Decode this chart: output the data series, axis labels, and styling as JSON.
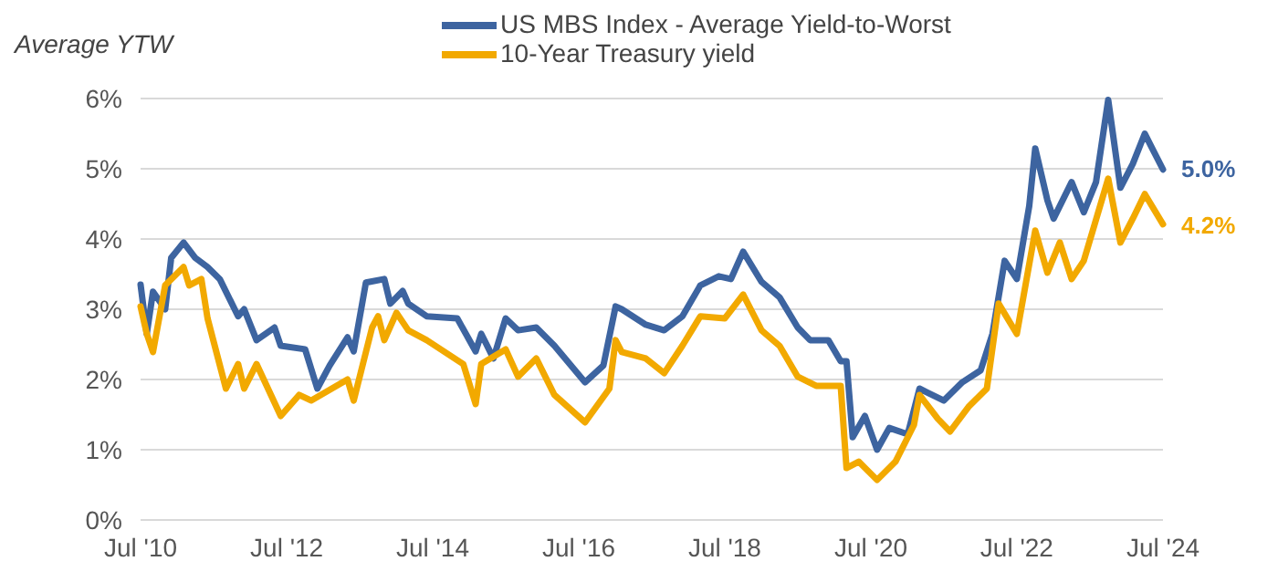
{
  "chart_data": {
    "type": "line",
    "ylabel": "Average YTW",
    "legend": "top",
    "grid": "y",
    "line_style": "solid",
    "marker": "none",
    "xlim": [
      "2010-07",
      "2024-07"
    ],
    "xticks": [
      {
        "value": "2010-07",
        "label": "Jul '10"
      },
      {
        "value": "2012-07",
        "label": "Jul '12"
      },
      {
        "value": "2014-07",
        "label": "Jul '14"
      },
      {
        "value": "2016-07",
        "label": "Jul '16"
      },
      {
        "value": "2018-07",
        "label": "Jul '18"
      },
      {
        "value": "2020-07",
        "label": "Jul '20"
      },
      {
        "value": "2022-07",
        "label": "Jul '22"
      },
      {
        "value": "2024-07",
        "label": "Jul '24"
      }
    ],
    "ylim": [
      0,
      6
    ],
    "yticks": [
      {
        "value": 0,
        "label": "0%"
      },
      {
        "value": 1,
        "label": "1%"
      },
      {
        "value": 2,
        "label": "2%"
      },
      {
        "value": 3,
        "label": "3%"
      },
      {
        "value": 4,
        "label": "4%"
      },
      {
        "value": 5,
        "label": "5%"
      },
      {
        "value": 6,
        "label": "6%"
      }
    ],
    "series": [
      {
        "name": "US MBS Index - Average Yield-to-Worst",
        "color": "#3d64a0",
        "x": [
          "2010-07",
          "2010-08",
          "2010-09",
          "2010-11",
          "2010-12",
          "2011-02",
          "2011-04",
          "2011-06",
          "2011-08",
          "2011-11",
          "2011-12",
          "2012-02",
          "2012-05",
          "2012-06",
          "2012-10",
          "2012-12",
          "2013-02",
          "2013-05",
          "2013-06",
          "2013-08",
          "2013-11",
          "2013-12",
          "2014-02",
          "2014-03",
          "2014-06",
          "2014-11",
          "2015-02",
          "2015-03",
          "2015-05",
          "2015-07",
          "2015-09",
          "2015-12",
          "2016-03",
          "2016-08",
          "2016-11",
          "2017-01",
          "2017-02",
          "2017-06",
          "2017-09",
          "2017-12",
          "2018-03",
          "2018-06",
          "2018-08",
          "2018-10",
          "2019-01",
          "2019-04",
          "2019-07",
          "2019-09",
          "2019-12",
          "2020-02",
          "2020-03",
          "2020-04",
          "2020-06",
          "2020-08",
          "2020-10",
          "2021-01",
          "2021-03",
          "2021-07",
          "2021-10",
          "2022-01",
          "2022-03",
          "2022-05",
          "2022-07",
          "2022-09",
          "2022-10",
          "2022-12",
          "2023-01",
          "2023-04",
          "2023-06",
          "2023-08",
          "2023-10",
          "2023-12",
          "2024-02",
          "2024-04",
          "2024-05",
          "2024-07"
        ],
        "values": [
          3.35,
          2.65,
          3.25,
          3.0,
          3.73,
          3.95,
          3.73,
          3.6,
          3.43,
          2.9,
          3.0,
          2.56,
          2.74,
          2.48,
          2.43,
          1.87,
          2.2,
          2.6,
          2.4,
          3.38,
          3.43,
          3.08,
          3.26,
          3.08,
          2.9,
          2.87,
          2.4,
          2.65,
          2.3,
          2.87,
          2.7,
          2.74,
          2.48,
          1.96,
          2.2,
          3.04,
          3.0,
          2.78,
          2.7,
          2.9,
          3.34,
          3.47,
          3.43,
          3.82,
          3.39,
          3.17,
          2.74,
          2.56,
          2.56,
          2.26,
          2.26,
          1.18,
          1.48,
          1.0,
          1.31,
          1.22,
          1.87,
          1.7,
          1.96,
          2.13,
          2.65,
          3.69,
          3.43,
          4.47,
          5.29,
          4.55,
          4.29,
          4.81,
          4.38,
          4.81,
          5.98,
          4.73,
          5.07,
          5.5,
          5.33,
          4.99
        ]
      },
      {
        "name": "10-Year Treasury yield",
        "color": "#f2a900",
        "x": [
          "2010-07",
          "2010-08",
          "2010-09",
          "2010-11",
          "2011-02",
          "2011-03",
          "2011-05",
          "2011-06",
          "2011-09",
          "2011-11",
          "2011-12",
          "2012-02",
          "2012-06",
          "2012-09",
          "2012-11",
          "2013-05",
          "2013-06",
          "2013-09",
          "2013-10",
          "2013-11",
          "2014-01",
          "2014-03",
          "2014-06",
          "2014-12",
          "2015-02",
          "2015-03",
          "2015-07",
          "2015-09",
          "2015-12",
          "2016-03",
          "2016-08",
          "2016-12",
          "2017-01",
          "2017-02",
          "2017-06",
          "2017-09",
          "2017-12",
          "2018-03",
          "2018-07",
          "2018-10",
          "2019-01",
          "2019-04",
          "2019-07",
          "2019-10",
          "2020-02",
          "2020-03",
          "2020-05",
          "2020-08",
          "2020-11",
          "2021-02",
          "2021-03",
          "2021-06",
          "2021-08",
          "2021-11",
          "2022-02",
          "2022-04",
          "2022-07",
          "2022-10",
          "2022-12",
          "2023-02",
          "2023-04",
          "2023-06",
          "2023-10",
          "2023-12",
          "2024-02",
          "2024-04",
          "2024-07"
        ],
        "values": [
          3.04,
          2.65,
          2.39,
          3.34,
          3.6,
          3.34,
          3.43,
          2.87,
          1.87,
          2.22,
          1.87,
          2.22,
          1.48,
          1.78,
          1.7,
          2.0,
          1.7,
          2.74,
          2.9,
          2.56,
          2.95,
          2.7,
          2.56,
          2.22,
          1.65,
          2.22,
          2.43,
          2.04,
          2.3,
          1.78,
          1.39,
          1.87,
          2.56,
          2.39,
          2.3,
          2.09,
          2.48,
          2.9,
          2.87,
          3.21,
          2.7,
          2.48,
          2.04,
          1.91,
          1.91,
          0.74,
          0.83,
          0.57,
          0.83,
          1.35,
          1.78,
          1.44,
          1.26,
          1.61,
          1.87,
          3.08,
          2.65,
          4.12,
          3.52,
          3.95,
          3.43,
          3.69,
          4.86,
          3.95,
          4.29,
          4.64,
          4.21
        ]
      }
    ],
    "annotations": [
      {
        "text": "5.0%",
        "x": "2024-07",
        "y": 5.0
      },
      {
        "text": "4.2%",
        "x": "2024-07",
        "y": 4.2
      }
    ]
  }
}
